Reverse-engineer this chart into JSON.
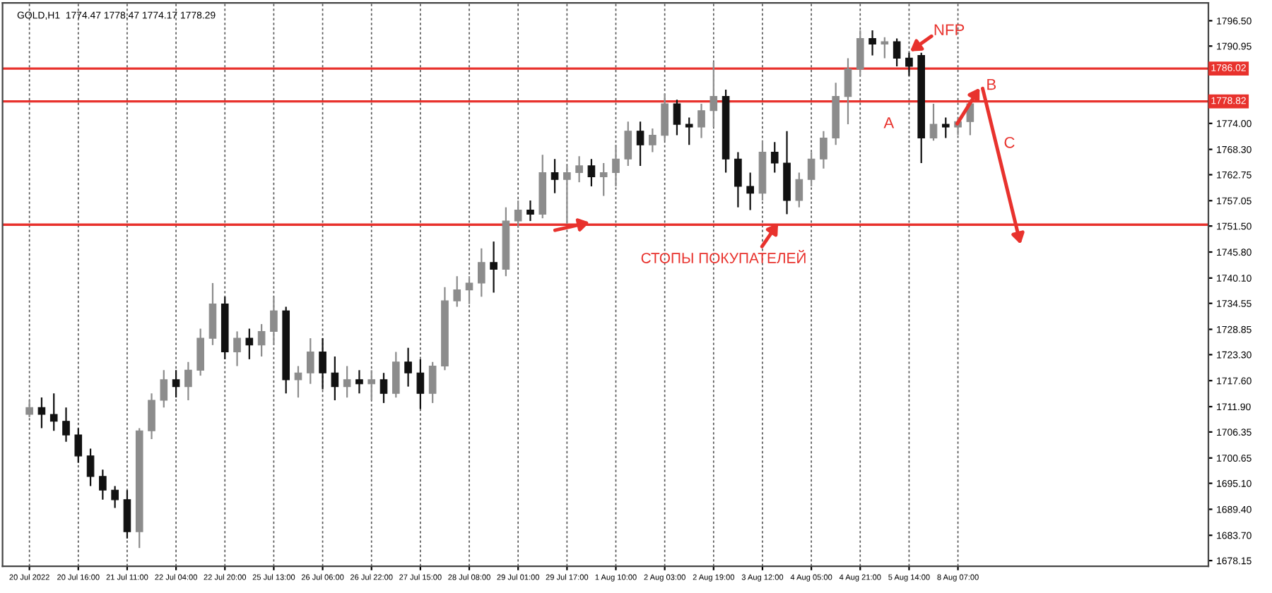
{
  "chart_data": {
    "type": "candlestick",
    "title": "GOLD,H1  1774.47 1778.47 1774.17 1778.29",
    "categories": [
      "20 Jul 2022",
      null,
      null,
      null,
      "20 Jul 16:00",
      null,
      null,
      null,
      "21 Jul 11:00",
      null,
      null,
      null,
      "22 Jul 04:00",
      null,
      null,
      null,
      "22 Jul 20:00",
      null,
      null,
      null,
      "25 Jul 13:00",
      null,
      null,
      null,
      "26 Jul 06:00",
      null,
      null,
      null,
      "26 Jul 22:00",
      null,
      null,
      null,
      "27 Jul 15:00",
      null,
      null,
      null,
      "28 Jul 08:00",
      null,
      null,
      null,
      "29 Jul 01:00",
      null,
      null,
      null,
      "29 Jul 17:00",
      null,
      null,
      null,
      "1 Aug 10:00",
      null,
      null,
      null,
      "2 Aug 03:00",
      null,
      null,
      null,
      "2 Aug 19:00",
      null,
      null,
      null,
      "3 Aug 12:00",
      null,
      null,
      null,
      "4 Aug 05:00",
      null,
      null,
      null,
      "4 Aug 21:00",
      null,
      null,
      null,
      "5 Aug 14:00",
      null,
      null,
      null,
      "8 Aug 07:00",
      null,
      null,
      null,
      null,
      null,
      null,
      null,
      null,
      null,
      null,
      null,
      null,
      null,
      null,
      null,
      null,
      null,
      null,
      null,
      null
    ],
    "ohlc": [
      [
        1710.2,
        1713.3,
        1709.6,
        1711.7
      ],
      [
        1711.7,
        1713.9,
        1707.2,
        1710.2
      ],
      [
        1710.2,
        1714.8,
        1706.6,
        1708.7
      ],
      [
        1708.7,
        1711.7,
        1704.2,
        1705.7
      ],
      [
        1705.7,
        1707.2,
        1699.6,
        1701.1
      ],
      [
        1701.1,
        1702.7,
        1694.5,
        1696.6
      ],
      [
        1696.6,
        1698.1,
        1691.5,
        1693.6
      ],
      [
        1693.6,
        1694.5,
        1689.7,
        1691.5
      ],
      [
        1691.5,
        1693.6,
        1683.0,
        1684.5
      ],
      [
        1684.5,
        1707.2,
        1680.9,
        1706.6
      ],
      [
        1706.6,
        1714.8,
        1704.8,
        1713.3
      ],
      [
        1713.3,
        1719.9,
        1711.7,
        1717.8
      ],
      [
        1717.8,
        1719.9,
        1713.9,
        1716.3
      ],
      [
        1716.3,
        1721.7,
        1713.3,
        1719.9
      ],
      [
        1719.9,
        1729.0,
        1718.7,
        1726.9
      ],
      [
        1726.9,
        1739.0,
        1725.4,
        1734.4
      ],
      [
        1734.4,
        1736.0,
        1722.3,
        1723.9
      ],
      [
        1723.9,
        1728.4,
        1720.8,
        1726.9
      ],
      [
        1726.9,
        1729.0,
        1722.3,
        1725.4
      ],
      [
        1725.4,
        1730.0,
        1722.9,
        1728.4
      ],
      [
        1728.4,
        1736.0,
        1725.4,
        1732.9
      ],
      [
        1732.9,
        1733.8,
        1714.8,
        1717.8
      ],
      [
        1717.8,
        1720.8,
        1713.9,
        1719.3
      ],
      [
        1719.3,
        1726.9,
        1716.9,
        1723.9
      ],
      [
        1723.9,
        1726.9,
        1715.7,
        1719.3
      ],
      [
        1719.3,
        1722.9,
        1713.3,
        1716.3
      ],
      [
        1716.3,
        1720.8,
        1713.9,
        1717.8
      ],
      [
        1717.8,
        1719.9,
        1714.8,
        1716.9
      ],
      [
        1716.9,
        1719.9,
        1713.3,
        1717.8
      ],
      [
        1717.8,
        1719.3,
        1712.7,
        1714.8
      ],
      [
        1714.8,
        1723.9,
        1713.9,
        1721.7
      ],
      [
        1721.7,
        1724.8,
        1716.3,
        1719.3
      ],
      [
        1719.3,
        1722.3,
        1711.4,
        1714.8
      ],
      [
        1714.8,
        1721.7,
        1712.7,
        1720.8
      ],
      [
        1720.8,
        1738.1,
        1719.9,
        1735.1
      ],
      [
        1735.1,
        1740.5,
        1733.8,
        1737.5
      ],
      [
        1737.5,
        1740.5,
        1734.4,
        1739.0
      ],
      [
        1739.0,
        1746.6,
        1736.0,
        1743.5
      ],
      [
        1743.5,
        1748.1,
        1736.9,
        1742.0
      ],
      [
        1742.0,
        1755.6,
        1740.5,
        1752.6
      ],
      [
        1752.6,
        1757.1,
        1751.1,
        1755.0
      ],
      [
        1755.0,
        1757.1,
        1752.6,
        1754.1
      ],
      [
        1754.1,
        1767.1,
        1753.2,
        1763.2
      ],
      [
        1763.2,
        1766.2,
        1758.7,
        1761.7
      ],
      [
        1761.7,
        1764.7,
        1752.0,
        1763.2
      ],
      [
        1763.2,
        1766.8,
        1761.1,
        1764.7
      ],
      [
        1764.7,
        1766.2,
        1760.2,
        1762.3
      ],
      [
        1762.3,
        1765.3,
        1758.1,
        1763.2
      ],
      [
        1763.2,
        1769.3,
        1760.2,
        1766.2
      ],
      [
        1766.2,
        1774.4,
        1764.7,
        1772.3
      ],
      [
        1772.3,
        1774.4,
        1764.7,
        1769.3
      ],
      [
        1769.3,
        1772.9,
        1767.7,
        1771.4
      ],
      [
        1771.4,
        1780.5,
        1770.2,
        1778.3
      ],
      [
        1778.3,
        1779.2,
        1771.4,
        1773.8
      ],
      [
        1773.8,
        1775.3,
        1769.3,
        1773.2
      ],
      [
        1773.2,
        1778.3,
        1770.8,
        1776.8
      ],
      [
        1776.8,
        1787.4,
        1773.2,
        1779.9
      ],
      [
        1779.9,
        1781.4,
        1763.2,
        1766.2
      ],
      [
        1766.2,
        1767.7,
        1755.6,
        1760.2
      ],
      [
        1760.2,
        1763.2,
        1755.0,
        1758.7
      ],
      [
        1758.7,
        1770.2,
        1757.1,
        1767.7
      ],
      [
        1767.7,
        1769.9,
        1763.2,
        1765.3
      ],
      [
        1765.3,
        1772.3,
        1754.1,
        1757.1
      ],
      [
        1757.1,
        1763.2,
        1755.6,
        1761.7
      ],
      [
        1761.7,
        1767.7,
        1760.2,
        1766.2
      ],
      [
        1766.2,
        1772.3,
        1764.1,
        1770.8
      ],
      [
        1770.8,
        1782.9,
        1769.3,
        1779.9
      ],
      [
        1779.9,
        1788.3,
        1773.8,
        1785.9
      ],
      [
        1785.9,
        1794.4,
        1784.4,
        1792.6
      ],
      [
        1792.6,
        1794.4,
        1788.9,
        1791.4
      ],
      [
        1791.4,
        1792.9,
        1788.3,
        1791.9
      ],
      [
        1791.9,
        1792.6,
        1786.5,
        1788.3
      ],
      [
        1788.3,
        1789.5,
        1784.4,
        1786.5
      ],
      [
        1788.9,
        1789.5,
        1765.3,
        1770.8
      ],
      [
        1770.8,
        1778.3,
        1770.2,
        1773.8
      ],
      [
        1773.8,
        1775.3,
        1770.8,
        1773.2
      ],
      [
        1773.2,
        1775.3,
        1771.4,
        1774.4
      ],
      [
        1774.4,
        1779.2,
        1771.4,
        1778.3
      ],
      null,
      null,
      null,
      null,
      null,
      null,
      null,
      null,
      null,
      null,
      null,
      null,
      null,
      null,
      null,
      null,
      null,
      null,
      null
    ],
    "ylim": [
      1676.9,
      1800.4
    ],
    "yticks": [
      {
        "value": 1796.5,
        "label": "1796.50"
      },
      {
        "value": 1790.95,
        "label": "1790.95"
      },
      {
        "value": 1774.0,
        "label": "1774.00"
      },
      {
        "value": 1768.3,
        "label": "1768.30"
      },
      {
        "value": 1762.75,
        "label": "1762.75"
      },
      {
        "value": 1757.05,
        "label": "1757.05"
      },
      {
        "value": 1751.5,
        "label": "1751.50"
      },
      {
        "value": 1745.8,
        "label": "1745.80"
      },
      {
        "value": 1740.1,
        "label": "1740.10"
      },
      {
        "value": 1734.55,
        "label": "1734.55"
      },
      {
        "value": 1728.85,
        "label": "1728.85"
      },
      {
        "value": 1723.3,
        "label": "1723.30"
      },
      {
        "value": 1717.6,
        "label": "1717.60"
      },
      {
        "value": 1711.9,
        "label": "1711.90"
      },
      {
        "value": 1706.35,
        "label": "1706.35"
      },
      {
        "value": 1700.65,
        "label": "1700.65"
      },
      {
        "value": 1695.1,
        "label": "1695.10"
      },
      {
        "value": 1689.4,
        "label": "1689.40"
      },
      {
        "value": 1683.7,
        "label": "1683.70"
      },
      {
        "value": 1678.15,
        "label": "1678.15"
      }
    ],
    "ref_lines": [
      {
        "axis": "y",
        "value": 1786.02,
        "label": "1786.02",
        "color": "#e8322d"
      },
      {
        "axis": "y",
        "value": 1778.82,
        "label": "1778.82",
        "color": "#e8322d"
      },
      {
        "axis": "y",
        "value": 1751.8,
        "label": null,
        "color": "#e8322d"
      }
    ],
    "annotations": [
      "NFP",
      "B",
      "A",
      "C",
      "СТОПЫ ПОКУПАТЕЛЕЙ"
    ],
    "grid": "x"
  }
}
